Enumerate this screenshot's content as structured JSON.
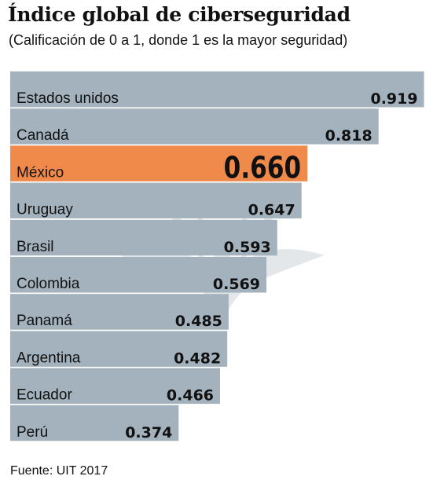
{
  "title": "Índice global de ciberseguridad",
  "subtitle": "(Calificación de 0 a 1, donde 1 es la mayor seguridad)",
  "source": "Fuente: UIT 2017",
  "colors": {
    "bar": "#a3b2bd",
    "highlight": "#f08a4b",
    "text": "#111111"
  },
  "chart_data": {
    "type": "bar",
    "orientation": "horizontal",
    "title": "Índice global de ciberseguridad",
    "subtitle": "(Calificación de 0 a 1, donde 1 es la mayor seguridad)",
    "categories": [
      "Estados unidos",
      "Canadá",
      "México",
      "Uruguay",
      "Brasil",
      "Colombia",
      "Panamá",
      "Argentina",
      "Ecuador",
      "Perú"
    ],
    "values": [
      0.919,
      0.818,
      0.66,
      0.647,
      0.593,
      0.569,
      0.485,
      0.482,
      0.466,
      0.374
    ],
    "labels": [
      "0.919",
      "0.818",
      "0.660",
      "0.647",
      "0.593",
      "0.569",
      "0.485",
      "0.482",
      "0.466",
      "0.374"
    ],
    "highlight": "México",
    "xlim": [
      0,
      1
    ],
    "xlabel": "",
    "ylabel": "",
    "grid": false,
    "legend": "none"
  }
}
